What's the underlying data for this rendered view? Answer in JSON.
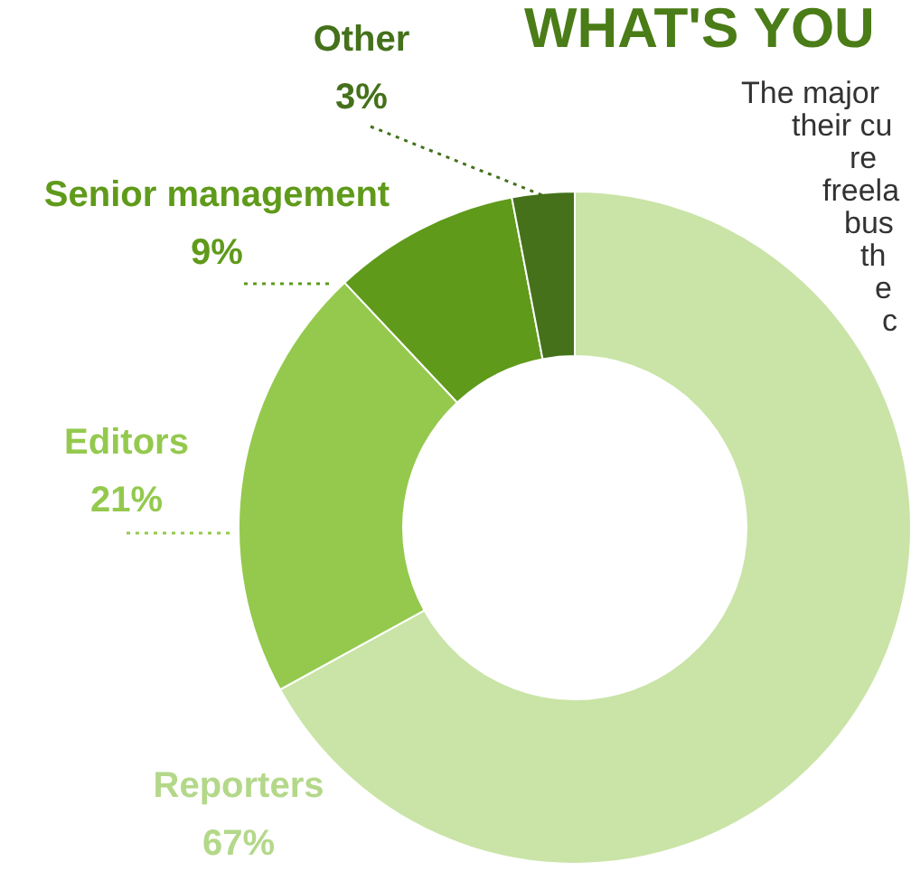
{
  "chart_data": {
    "type": "donut",
    "title": "WHAT'S YOU",
    "categories": [
      "Reporters",
      "Editors",
      "Senior management",
      "Other"
    ],
    "values": [
      67,
      21,
      9,
      3
    ],
    "colors": [
      "#c9e4a6",
      "#94c94e",
      "#5f9a1a",
      "#44711a"
    ],
    "value_labels": [
      "67%",
      "21%",
      "9%",
      "3%"
    ],
    "annotations": [
      "The major",
      "their cu",
      "re",
      "freela",
      "bus",
      "th",
      "e",
      "c"
    ]
  }
}
